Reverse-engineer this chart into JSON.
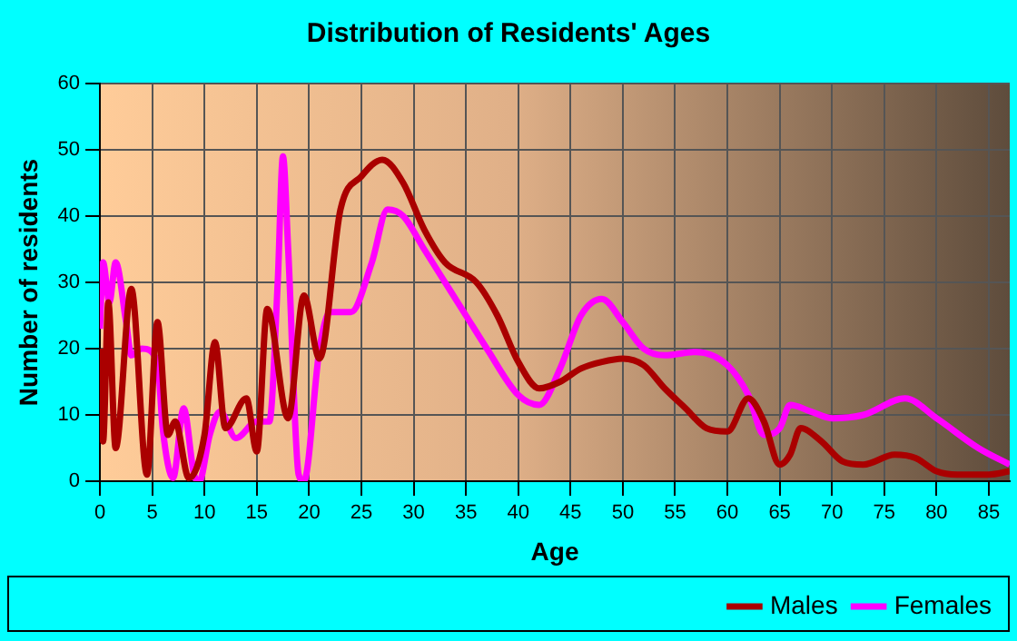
{
  "chart_data": {
    "type": "line",
    "title": "Distribution of Residents' Ages",
    "xlabel": "Age",
    "ylabel": "Number of residents",
    "xlim": [
      0,
      87
    ],
    "xticks": [
      0,
      5,
      10,
      15,
      20,
      25,
      30,
      35,
      40,
      45,
      50,
      55,
      60,
      65,
      70,
      75,
      80,
      85
    ],
    "ylim": [
      0,
      60
    ],
    "yticks": [
      0,
      10,
      20,
      30,
      40,
      50,
      60
    ],
    "grid": true,
    "legend": "bottom right",
    "marker": "none",
    "line_style": "solid",
    "series": [
      {
        "name": "Males",
        "color": "#aa0000",
        "x": [
          0,
          0.3,
          0.8,
          1.5,
          3,
          4.5,
          5.5,
          6.5,
          7.2,
          8.5,
          10,
          11,
          12,
          14,
          15,
          16,
          18,
          19.5,
          21,
          23,
          25,
          27,
          29,
          31,
          33,
          36,
          38,
          40,
          42,
          44,
          46,
          48,
          50,
          52,
          54,
          56,
          58,
          60,
          62,
          63.5,
          65,
          66,
          67,
          69,
          71,
          73,
          76,
          78,
          80,
          82,
          85,
          87
        ],
        "values": [
          20,
          6,
          27,
          5,
          29,
          1,
          24,
          7,
          9,
          0.5,
          7,
          21,
          8,
          12.5,
          4.5,
          26,
          9.5,
          28,
          18.5,
          41,
          46,
          48.5,
          45,
          38,
          33,
          30,
          25,
          18,
          14,
          15,
          17,
          18,
          18.5,
          17.5,
          14,
          11,
          8,
          7.5,
          12.5,
          9,
          2.5,
          4,
          8,
          6,
          3,
          2.5,
          4,
          3.5,
          1.5,
          1,
          1,
          1.5
        ]
      },
      {
        "name": "Females",
        "color": "#ff00ff",
        "x": [
          0,
          0.3,
          0.9,
          1.5,
          2.5,
          3,
          4,
          5.5,
          6,
          7,
          8,
          9,
          9.5,
          10.5,
          11.5,
          13,
          15,
          16.2,
          17,
          17.5,
          18,
          19,
          19.5,
          21,
          22,
          24,
          26,
          27.5,
          29,
          31,
          33,
          35,
          37,
          40,
          42,
          44,
          46,
          48,
          50,
          52,
          54,
          57,
          60,
          62,
          63.5,
          65,
          66,
          68,
          70,
          73,
          77,
          80,
          84,
          87
        ],
        "values": [
          23,
          33,
          27,
          33,
          24,
          19,
          20,
          18,
          8,
          0.5,
          11,
          1,
          0,
          7,
          10.5,
          6.5,
          9,
          9,
          30,
          49,
          35,
          1,
          0,
          20,
          25.5,
          25.5,
          33,
          41,
          40,
          35,
          30,
          25,
          20,
          13,
          11.5,
          17,
          25,
          27.5,
          24,
          20,
          19,
          19.5,
          17.5,
          13,
          7,
          8,
          11.5,
          10.5,
          9.5,
          10,
          12.5,
          9.5,
          5,
          2.5
        ]
      }
    ]
  }
}
